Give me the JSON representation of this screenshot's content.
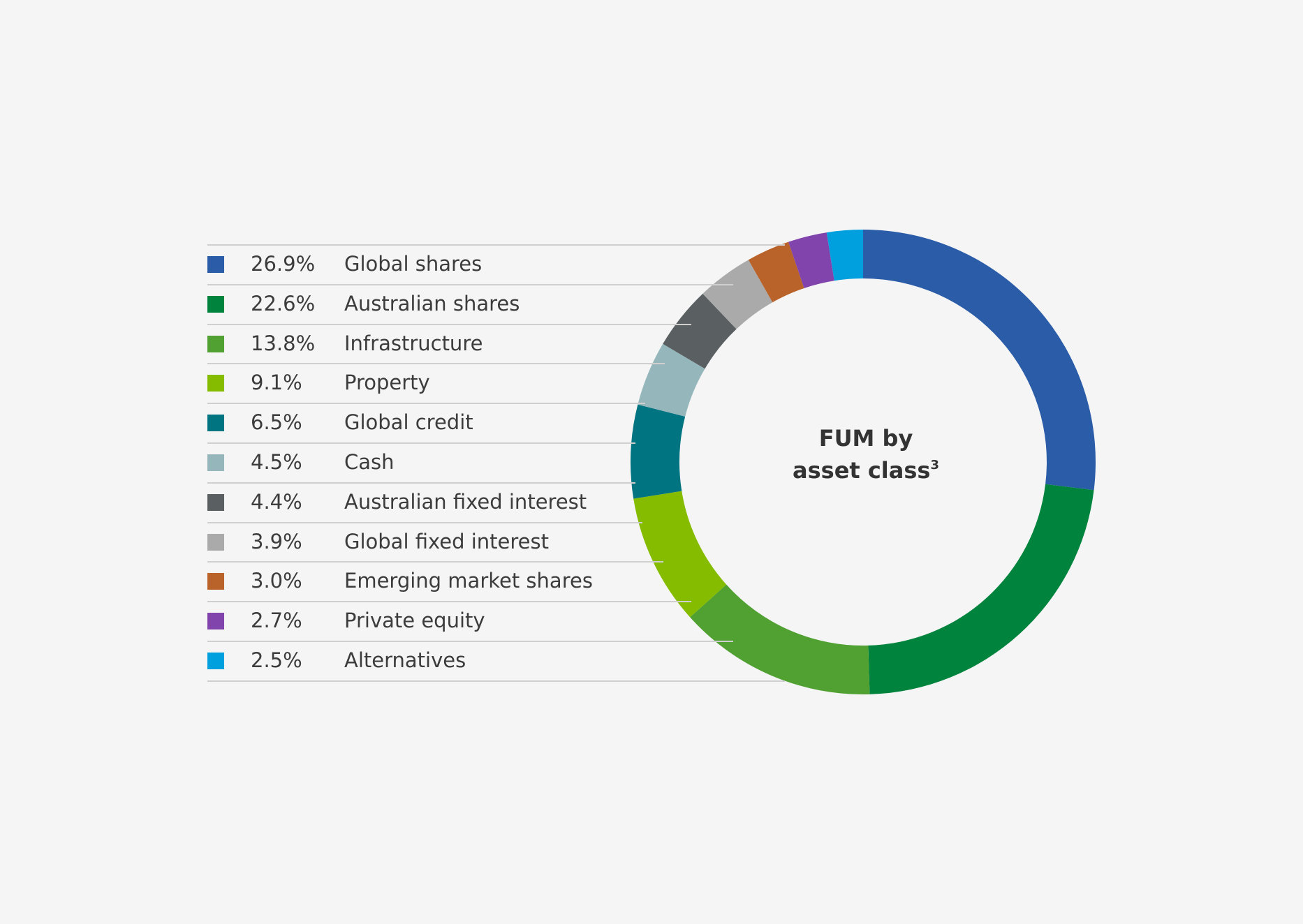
{
  "chart_data": {
    "type": "pie",
    "style": "donut",
    "title_line1": "FUM by",
    "title_line2": "asset class",
    "title_footnote": "3",
    "start": "top",
    "direction": "clockwise",
    "slices": [
      {
        "label": "Global shares",
        "value": 26.9,
        "display": "26.9%",
        "color": "#2a5ca8"
      },
      {
        "label": "Australian shares",
        "value": 22.6,
        "display": "22.6%",
        "color": "#00843d"
      },
      {
        "label": "Infrastructure",
        "value": 13.8,
        "display": "13.8%",
        "color": "#50a032"
      },
      {
        "label": "Property",
        "value": 9.1,
        "display": "9.1%",
        "color": "#86bc00"
      },
      {
        "label": "Global credit",
        "value": 6.5,
        "display": "6.5%",
        "color": "#007480"
      },
      {
        "label": "Cash",
        "value": 4.5,
        "display": "4.5%",
        "color": "#95b7bc"
      },
      {
        "label": "Australian fixed interest",
        "value": 4.4,
        "display": "4.4%",
        "color": "#5a6062"
      },
      {
        "label": "Global fixed interest",
        "value": 3.9,
        "display": "3.9%",
        "color": "#aaaaaa"
      },
      {
        "label": "Emerging market shares",
        "value": 3.0,
        "display": "3.0%",
        "color": "#b9632a"
      },
      {
        "label": "Private equity",
        "value": 2.7,
        "display": "2.7%",
        "color": "#8044ac"
      },
      {
        "label": "Alternatives",
        "value": 2.5,
        "display": "2.5%",
        "color": "#00a0df"
      }
    ]
  }
}
